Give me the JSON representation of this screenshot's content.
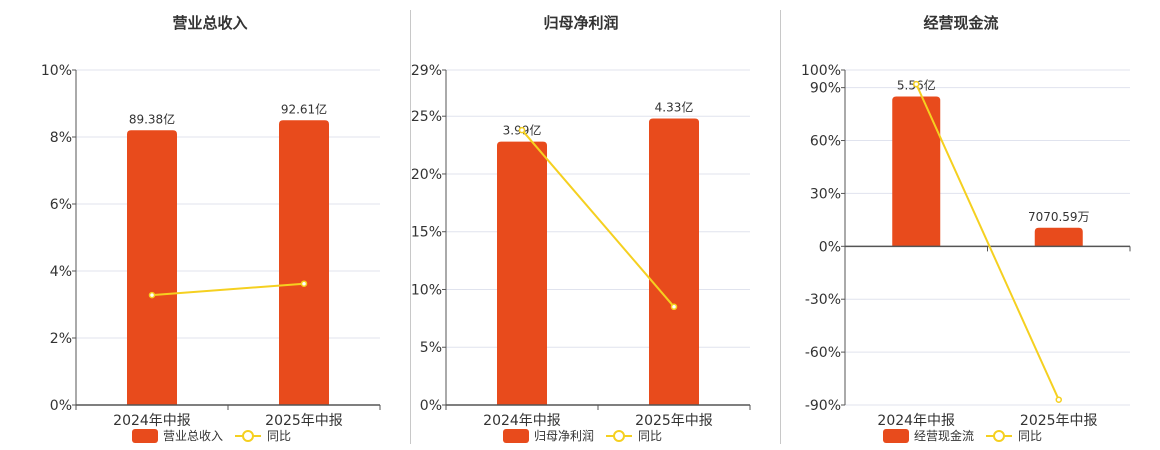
{
  "colors": {
    "bar": "#e84b1c",
    "line": "#f5d020",
    "grid": "#e0e3ee",
    "axis": "#555555"
  },
  "chart_data": [
    {
      "type": "bar",
      "title": "营业总收入",
      "categories": [
        "2024年中报",
        "2025年中报"
      ],
      "series": [
        {
          "name": "营业总收入",
          "kind": "bar",
          "values": [
            8.2,
            8.5
          ],
          "labels": [
            "89.38亿",
            "92.61亿"
          ]
        },
        {
          "name": "同比",
          "kind": "line",
          "values": [
            3.28,
            3.62
          ]
        }
      ],
      "yticks": [
        "0%",
        "2%",
        "4%",
        "6%",
        "8%",
        "10%"
      ],
      "ylim": [
        0,
        10
      ]
    },
    {
      "type": "bar",
      "title": "归母净利润",
      "categories": [
        "2024年中报",
        "2025年中报"
      ],
      "series": [
        {
          "name": "归母净利润",
          "kind": "bar",
          "values": [
            22.8,
            24.8
          ],
          "labels": [
            "3.99亿",
            "4.33亿"
          ]
        },
        {
          "name": "同比",
          "kind": "line",
          "values": [
            23.8,
            8.5
          ]
        }
      ],
      "yticks": [
        "0%",
        "5%",
        "10%",
        "15%",
        "20%",
        "25%",
        "29%"
      ],
      "ytick_values": [
        0,
        5,
        10,
        15,
        20,
        25,
        29
      ],
      "ylim": [
        0,
        29
      ]
    },
    {
      "type": "bar",
      "title": "经营现金流",
      "categories": [
        "2024年中报",
        "2025年中报"
      ],
      "series": [
        {
          "name": "经营现金流",
          "kind": "bar",
          "values": [
            85,
            10.5
          ],
          "labels": [
            "5.56亿",
            "7070.59万"
          ]
        },
        {
          "name": "同比",
          "kind": "line",
          "values": [
            92,
            -87
          ]
        }
      ],
      "yticks": [
        "-90%",
        "-60%",
        "-30%",
        "0%",
        "30%",
        "60%",
        "90%",
        "100%"
      ],
      "ytick_values": [
        -90,
        -60,
        -30,
        0,
        30,
        60,
        90,
        100
      ],
      "ylim": [
        -90,
        100
      ]
    }
  ]
}
